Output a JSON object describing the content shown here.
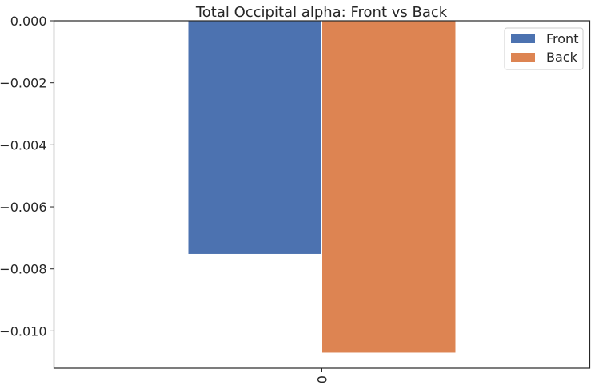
{
  "chart_data": {
    "type": "bar",
    "title": "Total Occipital alpha: Front vs Back",
    "xlabel": "",
    "ylabel": "",
    "categories": [
      "0"
    ],
    "series": [
      {
        "name": "Front",
        "values": [
          -0.00753
        ],
        "color": "#4c72b0"
      },
      {
        "name": "Back",
        "values": [
          -0.01071
        ],
        "color": "#dd8452"
      }
    ],
    "ylim": [
      -0.0112,
      0.0
    ],
    "yticks": [
      0.0,
      -0.002,
      -0.004,
      -0.006,
      -0.008,
      -0.01
    ],
    "ytick_labels": [
      "0.000",
      "−0.002",
      "−0.004",
      "−0.006",
      "−0.008",
      "−0.010"
    ],
    "grid": false,
    "legend_position": "top-right"
  }
}
